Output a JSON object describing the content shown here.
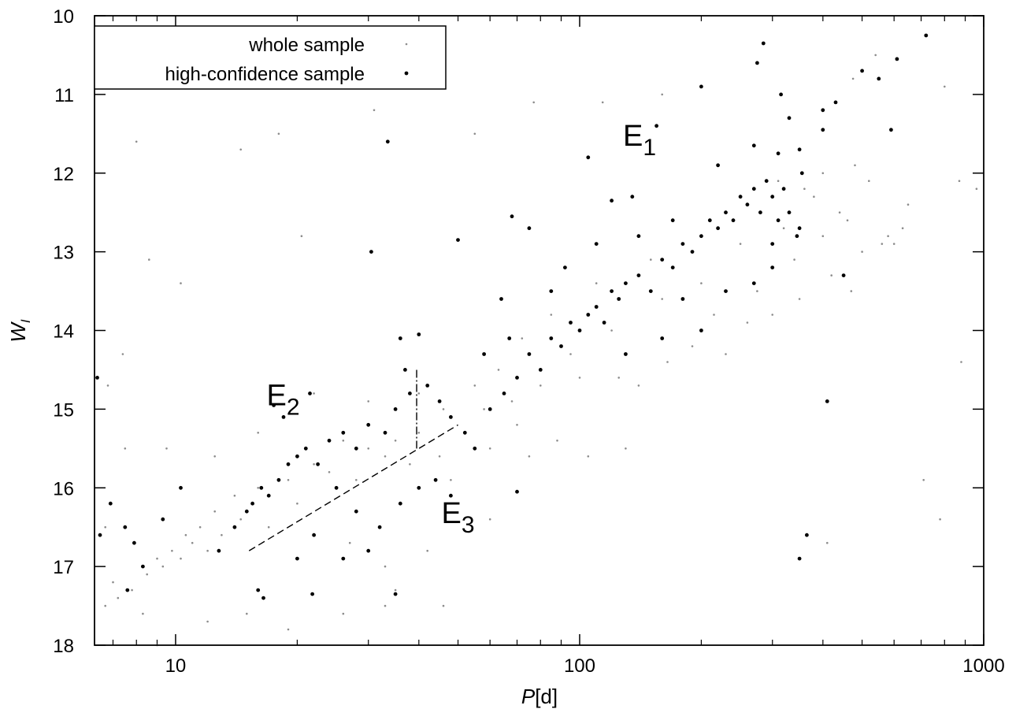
{
  "chart_data": {
    "type": "scatter",
    "title": "",
    "xlabel": {
      "var": "P",
      "unit": "[d]"
    },
    "ylabel": {
      "var": "W",
      "sub": "I"
    },
    "x_scale": "log",
    "xlim": [
      6.3,
      1000
    ],
    "ylim": [
      10,
      18
    ],
    "y_inverted": true,
    "x_ticks": [
      10,
      100,
      1000
    ],
    "x_tick_labels": [
      "10",
      "100",
      "1000"
    ],
    "y_ticks": [
      10,
      11,
      12,
      13,
      14,
      15,
      16,
      17,
      18
    ],
    "y_tick_labels": [
      "10",
      "11",
      "12",
      "13",
      "14",
      "15",
      "16",
      "17",
      "18"
    ],
    "grid": false,
    "legend": {
      "placement": "top-left",
      "entries": [
        {
          "label": "whole sample",
          "marker": "small-gray-dot"
        },
        {
          "label": "high-confidence sample",
          "marker": "black-dot"
        }
      ]
    },
    "colors": {
      "whole_sample": "#8c8c8c",
      "high_confidence": "#000000",
      "axes": "#000000"
    },
    "series": [
      {
        "name": "whole sample",
        "structure": "dense band (Sequence E1) from P ~ 50 d, W_I ~ 15.0 to P ~ 650 d, W_I ~ 12.6, with a sparse scatter of outliers",
        "points": [
          [
            7.5,
            15.5
          ],
          [
            8.0,
            11.6
          ],
          [
            8.6,
            13.1
          ],
          [
            10.3,
            13.4
          ],
          [
            11.0,
            10.9
          ],
          [
            14.5,
            11.7
          ],
          [
            18.0,
            11.5
          ],
          [
            20.5,
            12.8
          ],
          [
            31.0,
            11.2
          ],
          [
            55.0,
            11.5
          ],
          [
            77.0,
            11.1
          ],
          [
            114,
            11.1
          ],
          [
            160,
            11.0
          ],
          [
            330,
            11.3
          ],
          [
            475,
            10.8
          ],
          [
            540,
            10.5
          ],
          [
            800,
            10.9
          ],
          [
            870,
            12.1
          ],
          [
            960,
            12.2
          ],
          [
            880,
            14.4
          ],
          [
            710,
            15.9
          ],
          [
            780,
            16.4
          ],
          [
            410,
            16.7
          ],
          [
            105,
            15.6
          ],
          [
            130,
            15.5
          ],
          [
            9.0,
            18.0
          ],
          [
            8.3,
            17.6
          ],
          [
            7.0,
            17.2
          ],
          [
            6.7,
            16.5
          ],
          [
            12.0,
            17.7
          ],
          [
            15.0,
            17.6
          ],
          [
            19.0,
            17.8
          ],
          [
            26.0,
            17.6
          ],
          [
            35.0,
            17.3
          ],
          [
            46.0,
            17.5
          ],
          [
            6.8,
            14.7
          ],
          [
            7.4,
            14.3
          ],
          [
            9.5,
            15.5
          ],
          [
            12.5,
            15.6
          ],
          [
            16.0,
            15.3
          ],
          [
            22.0,
            14.8
          ],
          [
            30.0,
            14.9
          ],
          [
            40.0,
            14.8
          ],
          [
            27.0,
            16.7
          ],
          [
            33.0,
            17.0
          ],
          [
            42.0,
            16.8
          ],
          [
            50.0,
            16.2
          ],
          [
            60.0,
            16.4
          ],
          [
            75.0,
            15.6
          ],
          [
            88.0,
            15.4
          ],
          [
            140,
            14.7
          ],
          [
            190,
            14.2
          ],
          [
            230,
            14.3
          ],
          [
            260,
            13.9
          ],
          [
            300,
            13.8
          ],
          [
            350,
            13.6
          ],
          [
            420,
            13.3
          ],
          [
            470,
            13.5
          ],
          [
            500,
            13.0
          ],
          [
            580,
            12.8
          ],
          [
            630,
            12.7
          ],
          [
            650,
            12.4
          ],
          [
            560,
            12.9
          ],
          [
            440,
            12.5
          ],
          [
            380,
            12.3
          ],
          [
            320,
            12.7
          ],
          [
            250,
            12.9
          ],
          [
            200,
            13.4
          ],
          [
            160,
            13.6
          ],
          [
            120,
            14.0
          ],
          [
            95,
            14.3
          ],
          [
            80,
            14.7
          ],
          [
            68,
            14.9
          ],
          [
            58,
            15.0
          ],
          [
            52,
            15.3
          ],
          [
            45,
            15.6
          ],
          [
            38,
            15.7
          ],
          [
            33,
            15.6
          ],
          [
            28,
            15.9
          ],
          [
            24,
            15.8
          ],
          [
            20,
            16.2
          ],
          [
            17,
            16.5
          ],
          [
            14.5,
            16.4
          ],
          [
            13,
            16.6
          ],
          [
            12,
            16.8
          ],
          [
            11,
            16.7
          ],
          [
            10.3,
            16.9
          ],
          [
            9.3,
            17.0
          ],
          [
            8.5,
            17.1
          ],
          [
            7.8,
            17.3
          ],
          [
            7.2,
            17.4
          ],
          [
            6.7,
            17.5
          ],
          [
            33,
            17.5
          ],
          [
            48,
            15.9
          ],
          [
            60,
            15.5
          ],
          [
            70,
            15.2
          ],
          [
            100,
            14.6
          ],
          [
            125,
            14.6
          ],
          [
            165,
            14.4
          ],
          [
            215,
            13.8
          ],
          [
            275,
            13.5
          ],
          [
            340,
            13.1
          ],
          [
            400,
            12.8
          ],
          [
            460,
            12.6
          ],
          [
            520,
            12.1
          ],
          [
            600,
            12.9
          ],
          [
            480,
            11.9
          ],
          [
            400,
            12.0
          ],
          [
            360,
            12.2
          ],
          [
            310,
            12.1
          ],
          [
            150,
            13.1
          ],
          [
            110,
            13.4
          ],
          [
            85,
            13.8
          ],
          [
            72,
            14.1
          ],
          [
            63,
            14.5
          ],
          [
            55,
            14.7
          ],
          [
            46,
            15.0
          ],
          [
            40,
            15.3
          ],
          [
            35,
            15.4
          ],
          [
            30,
            15.5
          ],
          [
            26,
            15.4
          ],
          [
            22,
            15.7
          ],
          [
            19,
            15.9
          ],
          [
            16,
            16.0
          ],
          [
            14,
            16.1
          ],
          [
            12.5,
            16.3
          ],
          [
            11.5,
            16.5
          ],
          [
            10.6,
            16.6
          ],
          [
            9.8,
            16.8
          ],
          [
            9.0,
            16.9
          ]
        ]
      },
      {
        "name": "high-confidence sample",
        "structure": "main band from P ~ 60 d, W_I ~ 15.0 to P ~ 330 d, W_I ~ 12.4; second band (E2) from P ~ 13 d, W_I ~ 16.5 to P ~ 40 d, W_I ~ 15.2; lower group (E3) near P ~ 20-50 d, W_I ~ 16-17",
        "points": [
          [
            720,
            10.25
          ],
          [
            285,
            10.35
          ],
          [
            610,
            10.55
          ],
          [
            500,
            10.7
          ],
          [
            550,
            10.8
          ],
          [
            275,
            10.6
          ],
          [
            200,
            10.9
          ],
          [
            430,
            11.1
          ],
          [
            315,
            11.0
          ],
          [
            400,
            11.2
          ],
          [
            330,
            11.3
          ],
          [
            590,
            11.45
          ],
          [
            400,
            11.45
          ],
          [
            155,
            11.4
          ],
          [
            105,
            11.8
          ],
          [
            33.5,
            11.6
          ],
          [
            270,
            11.65
          ],
          [
            310,
            11.75
          ],
          [
            220,
            11.9
          ],
          [
            350,
            11.7
          ],
          [
            135,
            12.3
          ],
          [
            120,
            12.35
          ],
          [
            68,
            12.55
          ],
          [
            50,
            12.85
          ],
          [
            30.5,
            13.0
          ],
          [
            75,
            12.7
          ],
          [
            92,
            13.2
          ],
          [
            6.4,
            14.6
          ],
          [
            6.5,
            16.6
          ],
          [
            6.9,
            16.2
          ],
          [
            7.5,
            16.5
          ],
          [
            7.6,
            17.3
          ],
          [
            8.3,
            17.0
          ],
          [
            7.9,
            16.7
          ],
          [
            9.3,
            16.4
          ],
          [
            10.3,
            16.0
          ],
          [
            17.5,
            14.95
          ],
          [
            21.5,
            14.8
          ],
          [
            18.5,
            15.1
          ],
          [
            36,
            14.1
          ],
          [
            40,
            14.05
          ],
          [
            37,
            14.5
          ],
          [
            35,
            17.35
          ],
          [
            21.8,
            17.35
          ],
          [
            16.5,
            17.4
          ],
          [
            16.0,
            17.3
          ],
          [
            12.8,
            16.8
          ],
          [
            14,
            16.5
          ],
          [
            15,
            16.3
          ],
          [
            15.5,
            16.2
          ],
          [
            16.3,
            16.0
          ],
          [
            17.0,
            16.1
          ],
          [
            18.0,
            15.9
          ],
          [
            19.0,
            15.7
          ],
          [
            20.0,
            15.6
          ],
          [
            21.0,
            15.5
          ],
          [
            22.5,
            15.7
          ],
          [
            24.0,
            15.4
          ],
          [
            26.0,
            15.3
          ],
          [
            28.0,
            15.5
          ],
          [
            30.0,
            15.2
          ],
          [
            33.0,
            15.3
          ],
          [
            35.0,
            15.0
          ],
          [
            38.0,
            14.8
          ],
          [
            42.0,
            14.7
          ],
          [
            45.0,
            14.9
          ],
          [
            48.0,
            15.1
          ],
          [
            52.0,
            15.3
          ],
          [
            55.0,
            15.5
          ],
          [
            60.0,
            15.0
          ],
          [
            65.0,
            14.8
          ],
          [
            70.0,
            14.6
          ],
          [
            75.0,
            14.3
          ],
          [
            80.0,
            14.5
          ],
          [
            85.0,
            14.1
          ],
          [
            90.0,
            14.2
          ],
          [
            95.0,
            13.9
          ],
          [
            100,
            14.0
          ],
          [
            105,
            13.8
          ],
          [
            110,
            13.7
          ],
          [
            115,
            13.9
          ],
          [
            120,
            13.5
          ],
          [
            125,
            13.6
          ],
          [
            130,
            13.4
          ],
          [
            140,
            13.3
          ],
          [
            150,
            13.5
          ],
          [
            160,
            13.1
          ],
          [
            170,
            13.2
          ],
          [
            180,
            12.9
          ],
          [
            190,
            13.0
          ],
          [
            200,
            12.8
          ],
          [
            210,
            12.6
          ],
          [
            220,
            12.7
          ],
          [
            230,
            12.5
          ],
          [
            240,
            12.6
          ],
          [
            250,
            12.3
          ],
          [
            260,
            12.4
          ],
          [
            270,
            12.2
          ],
          [
            280,
            12.5
          ],
          [
            290,
            12.1
          ],
          [
            300,
            12.3
          ],
          [
            310,
            12.6
          ],
          [
            320,
            12.2
          ],
          [
            330,
            12.5
          ],
          [
            345,
            12.8
          ],
          [
            355,
            12.0
          ],
          [
            25,
            16.0
          ],
          [
            28,
            16.3
          ],
          [
            32,
            16.5
          ],
          [
            36,
            16.2
          ],
          [
            40,
            16.0
          ],
          [
            44,
            15.9
          ],
          [
            30,
            16.8
          ],
          [
            26,
            16.9
          ],
          [
            22,
            16.6
          ],
          [
            20,
            16.9
          ],
          [
            48,
            16.1
          ],
          [
            70,
            16.05
          ],
          [
            64,
            13.6
          ],
          [
            58,
            14.3
          ],
          [
            67,
            14.1
          ],
          [
            85,
            13.5
          ],
          [
            110,
            12.9
          ],
          [
            140,
            12.8
          ],
          [
            170,
            12.6
          ],
          [
            180,
            13.6
          ],
          [
            230,
            13.5
          ],
          [
            270,
            13.4
          ],
          [
            300,
            13.2
          ],
          [
            200,
            14.0
          ],
          [
            160,
            14.1
          ],
          [
            130,
            14.3
          ],
          [
            350,
            16.9
          ],
          [
            365,
            16.6
          ],
          [
            410,
            14.9
          ],
          [
            450,
            13.3
          ],
          [
            350,
            12.7
          ],
          [
            300,
            12.9
          ]
        ]
      }
    ],
    "annotations": [
      {
        "text": "E",
        "sub": "1",
        "at": [
          128,
          11.65
        ]
      },
      {
        "text": "E",
        "sub": "2",
        "at": [
          16.8,
          14.95
        ]
      },
      {
        "text": "E",
        "sub": "3",
        "at": [
          45.5,
          16.45
        ]
      }
    ],
    "boundary_lines": [
      {
        "style": "dashed",
        "from": [
          15.2,
          16.8
        ],
        "to": [
          50,
          15.2
        ]
      },
      {
        "style": "dash-dot",
        "from": [
          39.5,
          14.5
        ],
        "to": [
          39.5,
          15.5
        ]
      }
    ]
  }
}
